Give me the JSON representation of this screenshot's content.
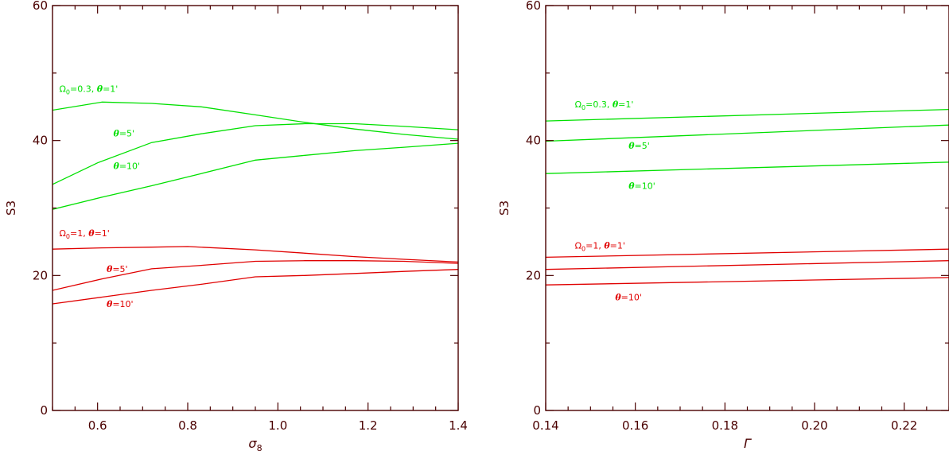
{
  "chart_data": [
    {
      "type": "line",
      "xlabel": "σ",
      "xlabel_sub": "8",
      "ylabel": "S3",
      "xlim": [
        0.5,
        1.4
      ],
      "ylim": [
        0,
        60
      ],
      "xticks": [
        0.6,
        0.8,
        1.0,
        1.2,
        1.4
      ],
      "xtick_labels": [
        "0.6",
        "0.8",
        "1.0",
        "1.2",
        "1.4"
      ],
      "yticks": [
        0,
        20,
        40,
        60
      ],
      "ytick_labels": [
        "0",
        "20",
        "40",
        "60"
      ],
      "grid": false,
      "series": [
        {
          "color": "#00e000",
          "x": [
            0.5,
            0.61,
            0.72,
            0.83,
            0.95,
            1.06,
            1.17,
            1.28,
            1.4
          ],
          "y": [
            44.5,
            45.7,
            45.5,
            45.0,
            43.8,
            42.7,
            41.7,
            40.9,
            40.2
          ]
        },
        {
          "color": "#00e000",
          "x": [
            0.5,
            0.6,
            0.72,
            0.83,
            0.95,
            1.06,
            1.17,
            1.28,
            1.4
          ],
          "y": [
            33.5,
            36.7,
            39.7,
            41.0,
            42.2,
            42.5,
            42.5,
            42.1,
            41.6
          ]
        },
        {
          "color": "#00e000",
          "x": [
            0.5,
            0.61,
            0.72,
            0.83,
            0.95,
            1.06,
            1.17,
            1.28,
            1.4
          ],
          "y": [
            29.8,
            31.6,
            33.3,
            35.1,
            37.1,
            37.8,
            38.5,
            39.0,
            39.6
          ]
        },
        {
          "color": "#e00000",
          "x": [
            0.5,
            0.61,
            0.72,
            0.8,
            0.95,
            1.06,
            1.17,
            1.28,
            1.4
          ],
          "y": [
            23.9,
            24.1,
            24.2,
            24.3,
            23.8,
            23.3,
            22.8,
            22.4,
            22.0
          ]
        },
        {
          "color": "#e00000",
          "x": [
            0.5,
            0.61,
            0.72,
            0.83,
            0.95,
            1.06,
            1.17,
            1.28,
            1.4
          ],
          "y": [
            17.8,
            19.5,
            21.0,
            21.5,
            22.1,
            22.2,
            22.2,
            22.1,
            21.8
          ]
        },
        {
          "color": "#e00000",
          "x": [
            0.5,
            0.61,
            0.72,
            0.83,
            0.95,
            1.06,
            1.17,
            1.28,
            1.4
          ],
          "y": [
            15.8,
            16.8,
            17.8,
            18.7,
            19.8,
            20.0,
            20.3,
            20.6,
            20.9
          ]
        }
      ],
      "annotations": [
        {
          "text": "Ω",
          "sub": "0",
          "after": "=0.3,  ",
          "theta": "θ",
          "tail": "=1'",
          "x": 0.515,
          "y": 47.2,
          "color": "#00e000"
        },
        {
          "text": "",
          "theta": "θ",
          "tail": "=5'",
          "x": 0.635,
          "y": 40.6,
          "color": "#00e000"
        },
        {
          "text": "",
          "theta": "θ",
          "tail": "=10'",
          "x": 0.635,
          "y": 35.8,
          "color": "#00e000"
        },
        {
          "text": "Ω",
          "sub": "0",
          "after": "=1,  ",
          "theta": "θ",
          "tail": "=1'",
          "x": 0.515,
          "y": 25.8,
          "color": "#e00000"
        },
        {
          "text": "",
          "theta": "θ",
          "tail": "=5'",
          "x": 0.62,
          "y": 20.5,
          "color": "#e00000"
        },
        {
          "text": "",
          "theta": "θ",
          "tail": "=10'",
          "x": 0.62,
          "y": 15.3,
          "color": "#e00000"
        }
      ]
    },
    {
      "type": "line",
      "xlabel": "Γ",
      "xlabel_sub": "",
      "ylabel": "S3",
      "xlim": [
        0.14,
        0.23
      ],
      "ylim": [
        0,
        60
      ],
      "xticks": [
        0.14,
        0.16,
        0.18,
        0.2,
        0.22
      ],
      "xtick_labels": [
        "0.14",
        "0.16",
        "0.18",
        "0.20",
        "0.22"
      ],
      "yticks": [
        0,
        20,
        40,
        60
      ],
      "ytick_labels": [
        "0",
        "20",
        "40",
        "60"
      ],
      "grid": false,
      "series": [
        {
          "color": "#00e000",
          "x": [
            0.14,
            0.23
          ],
          "y": [
            42.9,
            44.6
          ]
        },
        {
          "color": "#00e000",
          "x": [
            0.14,
            0.23
          ],
          "y": [
            39.9,
            42.3
          ]
        },
        {
          "color": "#00e000",
          "x": [
            0.14,
            0.23
          ],
          "y": [
            35.1,
            36.8
          ]
        },
        {
          "color": "#e00000",
          "x": [
            0.14,
            0.23
          ],
          "y": [
            22.7,
            23.9
          ]
        },
        {
          "color": "#e00000",
          "x": [
            0.14,
            0.23
          ],
          "y": [
            20.9,
            22.2
          ]
        },
        {
          "color": "#e00000",
          "x": [
            0.14,
            0.23
          ],
          "y": [
            18.6,
            19.7
          ]
        }
      ],
      "annotations": [
        {
          "text": "Ω",
          "sub": "0",
          "after": "=0.3,  ",
          "theta": "θ",
          "tail": "=1'",
          "x": 0.1465,
          "y": 44.9,
          "color": "#00e000"
        },
        {
          "text": "",
          "theta": "θ",
          "tail": "=5'",
          "x": 0.1585,
          "y": 38.8,
          "color": "#00e000"
        },
        {
          "text": "",
          "theta": "θ",
          "tail": "=10'",
          "x": 0.1585,
          "y": 32.8,
          "color": "#00e000"
        },
        {
          "text": "Ω",
          "sub": "0",
          "after": "=1,  ",
          "theta": "θ",
          "tail": "=1'",
          "x": 0.1465,
          "y": 24.0,
          "color": "#e00000"
        },
        {
          "text": "",
          "theta": "θ",
          "tail": "=10'",
          "x": 0.1555,
          "y": 16.3,
          "color": "#e00000"
        }
      ]
    }
  ]
}
